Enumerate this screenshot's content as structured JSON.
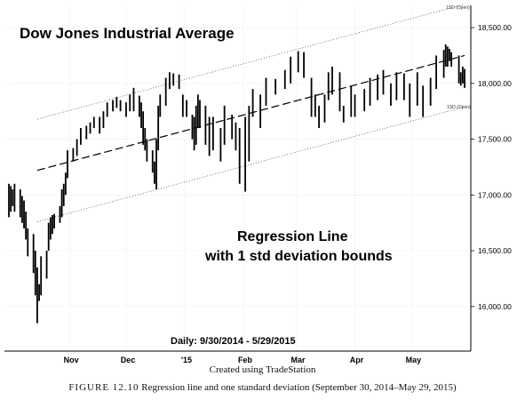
{
  "chart_data": {
    "type": "line",
    "title": "Dow Jones Industrial Average",
    "annotation_line1": "Regression Line",
    "annotation_line2": "with 1 std deviation bounds",
    "period_label": "Daily: 9/30/2014 - 5/29/2015",
    "upper_band_label": "1SD (Open)",
    "lower_band_label": "1SD (Open)",
    "y_axis": {
      "min": 15600,
      "max": 18700,
      "ticks": [
        16000,
        16500,
        17000,
        17500,
        18000,
        18500
      ],
      "tick_labels": [
        "16,000.00",
        "16,500.00",
        "17,000.00",
        "17,500.00",
        "18,000.00",
        "18,500.00"
      ],
      "position": "right"
    },
    "x_axis": {
      "start": "2014-09-30",
      "end": "2015-05-29",
      "month_labels": [
        "Nov",
        "Dec",
        "'15",
        "Feb",
        "Mar",
        "Apr",
        "May"
      ],
      "month_dates": [
        "2014-11-01",
        "2014-12-01",
        "2015-01-01",
        "2015-02-01",
        "2015-03-01",
        "2015-04-01",
        "2015-05-01"
      ]
    },
    "regression": {
      "start_date": "2014-10-15",
      "start_value": 17220,
      "end_date": "2015-05-29",
      "end_value": 18250
    },
    "upper_band": {
      "start_date": "2014-10-15",
      "start_value": 17680,
      "end_date": "2015-05-29",
      "end_value": 18710
    },
    "lower_band": {
      "start_date": "2014-10-15",
      "start_value": 16760,
      "end_date": "2015-05-29",
      "end_value": 17790
    },
    "series": [
      {
        "dates": [
          "2014-09-30",
          "2014-10-01",
          "2014-10-02",
          "2014-10-03",
          "2014-10-06",
          "2014-10-07",
          "2014-10-08",
          "2014-10-09",
          "2014-10-10",
          "2014-10-13",
          "2014-10-14",
          "2014-10-15",
          "2014-10-16",
          "2014-10-17",
          "2014-10-20",
          "2014-10-21",
          "2014-10-22",
          "2014-10-23",
          "2014-10-24",
          "2014-10-27",
          "2014-10-28",
          "2014-10-29",
          "2014-10-30",
          "2014-10-31",
          "2014-11-03",
          "2014-11-05",
          "2014-11-07",
          "2014-11-10",
          "2014-11-12",
          "2014-11-14",
          "2014-11-17",
          "2014-11-19",
          "2014-11-21",
          "2014-11-24",
          "2014-11-26",
          "2014-11-28",
          "2014-12-01",
          "2014-12-03",
          "2014-12-05",
          "2014-12-08",
          "2014-12-09",
          "2014-12-10",
          "2014-12-11",
          "2014-12-12",
          "2014-12-15",
          "2014-12-16",
          "2014-12-17",
          "2014-12-18",
          "2014-12-19",
          "2014-12-22",
          "2014-12-24",
          "2014-12-26",
          "2014-12-29",
          "2014-12-31",
          "2015-01-02",
          "2015-01-05",
          "2015-01-06",
          "2015-01-07",
          "2015-01-08",
          "2015-01-09",
          "2015-01-12",
          "2015-01-14",
          "2015-01-16",
          "2015-01-20",
          "2015-01-22",
          "2015-01-26",
          "2015-01-28",
          "2015-01-30",
          "2015-02-02",
          "2015-02-04",
          "2015-02-06",
          "2015-02-10",
          "2015-02-13",
          "2015-02-18",
          "2015-02-23",
          "2015-02-26",
          "2015-03-02",
          "2015-03-05",
          "2015-03-09",
          "2015-03-11",
          "2015-03-13",
          "2015-03-16",
          "2015-03-18",
          "2015-03-20",
          "2015-03-24",
          "2015-03-26",
          "2015-03-30",
          "2015-04-01",
          "2015-04-06",
          "2015-04-09",
          "2015-04-13",
          "2015-04-16",
          "2015-04-20",
          "2015-04-23",
          "2015-04-27",
          "2015-04-30",
          "2015-05-04",
          "2015-05-07",
          "2015-05-11",
          "2015-05-14",
          "2015-05-18",
          "2015-05-19",
          "2015-05-20",
          "2015-05-21",
          "2015-05-22",
          "2015-05-26",
          "2015-05-27",
          "2015-05-28",
          "2015-05-29"
        ],
        "high": [
          17100,
          17080,
          17050,
          17100,
          17050,
          16990,
          16950,
          16850,
          16700,
          16650,
          16500,
          16350,
          16200,
          16450,
          16500,
          16750,
          16800,
          16820,
          16830,
          16900,
          17050,
          17100,
          17200,
          17400,
          17420,
          17500,
          17600,
          17620,
          17650,
          17700,
          17700,
          17750,
          17830,
          17850,
          17880,
          17850,
          17830,
          17900,
          17960,
          17890,
          17830,
          17750,
          17600,
          17500,
          17400,
          17300,
          17500,
          17800,
          17900,
          18050,
          18100,
          18090,
          18080,
          17900,
          17850,
          17720,
          17700,
          17800,
          17900,
          17850,
          17800,
          17700,
          17700,
          17600,
          17800,
          17720,
          17650,
          17600,
          17700,
          17800,
          17950,
          17900,
          18050,
          18040,
          18120,
          18240,
          18290,
          18280,
          18050,
          17900,
          17800,
          17900,
          18100,
          18150,
          18100,
          17800,
          17980,
          17900,
          17950,
          18050,
          18080,
          18120,
          18000,
          18100,
          18090,
          18000,
          18100,
          17980,
          18050,
          18250,
          18300,
          18350,
          18330,
          18310,
          18280,
          18250,
          18100,
          18150,
          18130
        ],
        "low": [
          16800,
          16850,
          16900,
          16850,
          16800,
          16750,
          16700,
          16600,
          16450,
          16300,
          16100,
          15850,
          16050,
          16100,
          16250,
          16500,
          16600,
          16650,
          16700,
          16750,
          16800,
          16900,
          17000,
          17150,
          17300,
          17350,
          17450,
          17500,
          17550,
          17600,
          17550,
          17600,
          17700,
          17750,
          17780,
          17750,
          17700,
          17750,
          17750,
          17700,
          17600,
          17450,
          17400,
          17300,
          17200,
          17100,
          17050,
          17400,
          17700,
          17800,
          17950,
          17980,
          17950,
          17700,
          17700,
          17500,
          17400,
          17450,
          17600,
          17600,
          17450,
          17350,
          17400,
          17300,
          17450,
          17500,
          17400,
          17100,
          17030,
          17300,
          17700,
          17600,
          17800,
          17900,
          17950,
          18000,
          18100,
          18050,
          17700,
          17700,
          17600,
          17650,
          17850,
          17900,
          17750,
          17650,
          17700,
          17700,
          17750,
          17800,
          17850,
          17900,
          17800,
          17850,
          17850,
          17700,
          17800,
          17700,
          17800,
          17950,
          18050,
          18150,
          18150,
          18200,
          18150,
          18000,
          17980,
          18000,
          17960
        ]
      }
    ]
  },
  "source_label": "Created using TradeStation",
  "caption": {
    "figure": "FIGURE 12.10",
    "text": "Regression line and one standard deviation (September 30, 2014–May 29, 2015)"
  }
}
